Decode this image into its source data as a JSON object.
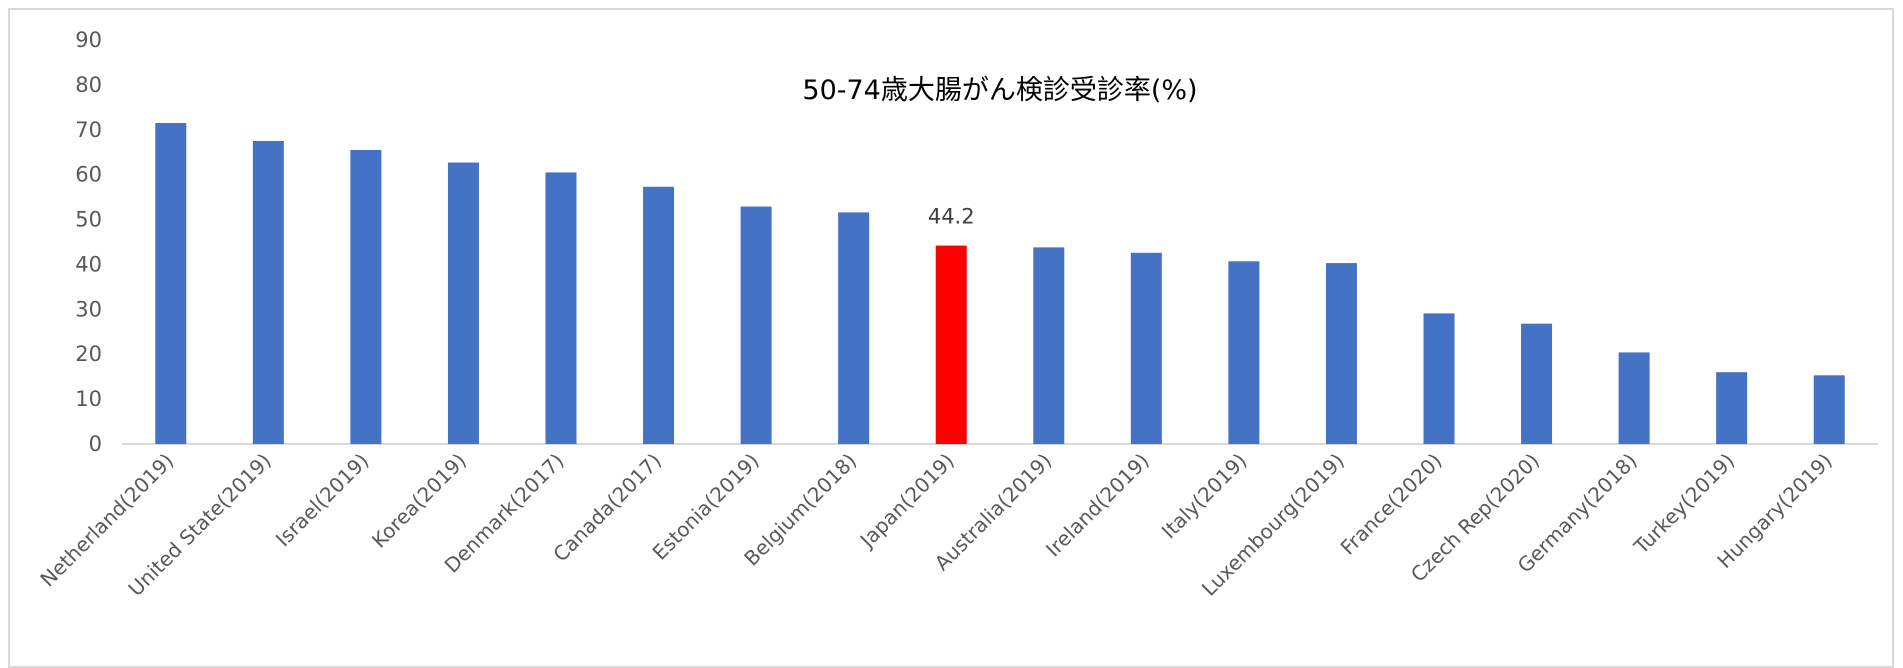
{
  "chart_data": {
    "type": "bar",
    "title": "50-74歳大腸がん検診受診率(%)",
    "xlabel": "",
    "ylabel": "",
    "ylim": [
      0,
      90
    ],
    "yticks": [
      0,
      10,
      20,
      30,
      40,
      50,
      60,
      70,
      80,
      90
    ],
    "grid": false,
    "categories": [
      "Netherland(2019)",
      "United State(2019)",
      "Israel(2019)",
      "Korea(2019)",
      "Denmark(2017)",
      "Canada(2017)",
      "Estonia(2019)",
      "Belgium(2018)",
      "Japan(2019)",
      "Australia(2019)",
      "Ireland(2019)",
      "Italy(2019)",
      "Luxembourg(2019)",
      "France(2020)",
      "Czech Rep(2020)",
      "Germany(2018)",
      "Turkey(2019)",
      "Hungary(2019)"
    ],
    "values": [
      71.5,
      67.5,
      65.5,
      62.7,
      60.5,
      57.3,
      52.9,
      51.6,
      44.2,
      43.8,
      42.6,
      40.7,
      40.3,
      29.1,
      26.8,
      20.4,
      16.0,
      15.3
    ],
    "highlight_index": 8,
    "data_labels": [
      {
        "index": 8,
        "text": "44.2"
      }
    ],
    "colors": {
      "bar": "#4472c4",
      "highlight": "#ff0000",
      "axis": "#d9d9d9"
    }
  }
}
